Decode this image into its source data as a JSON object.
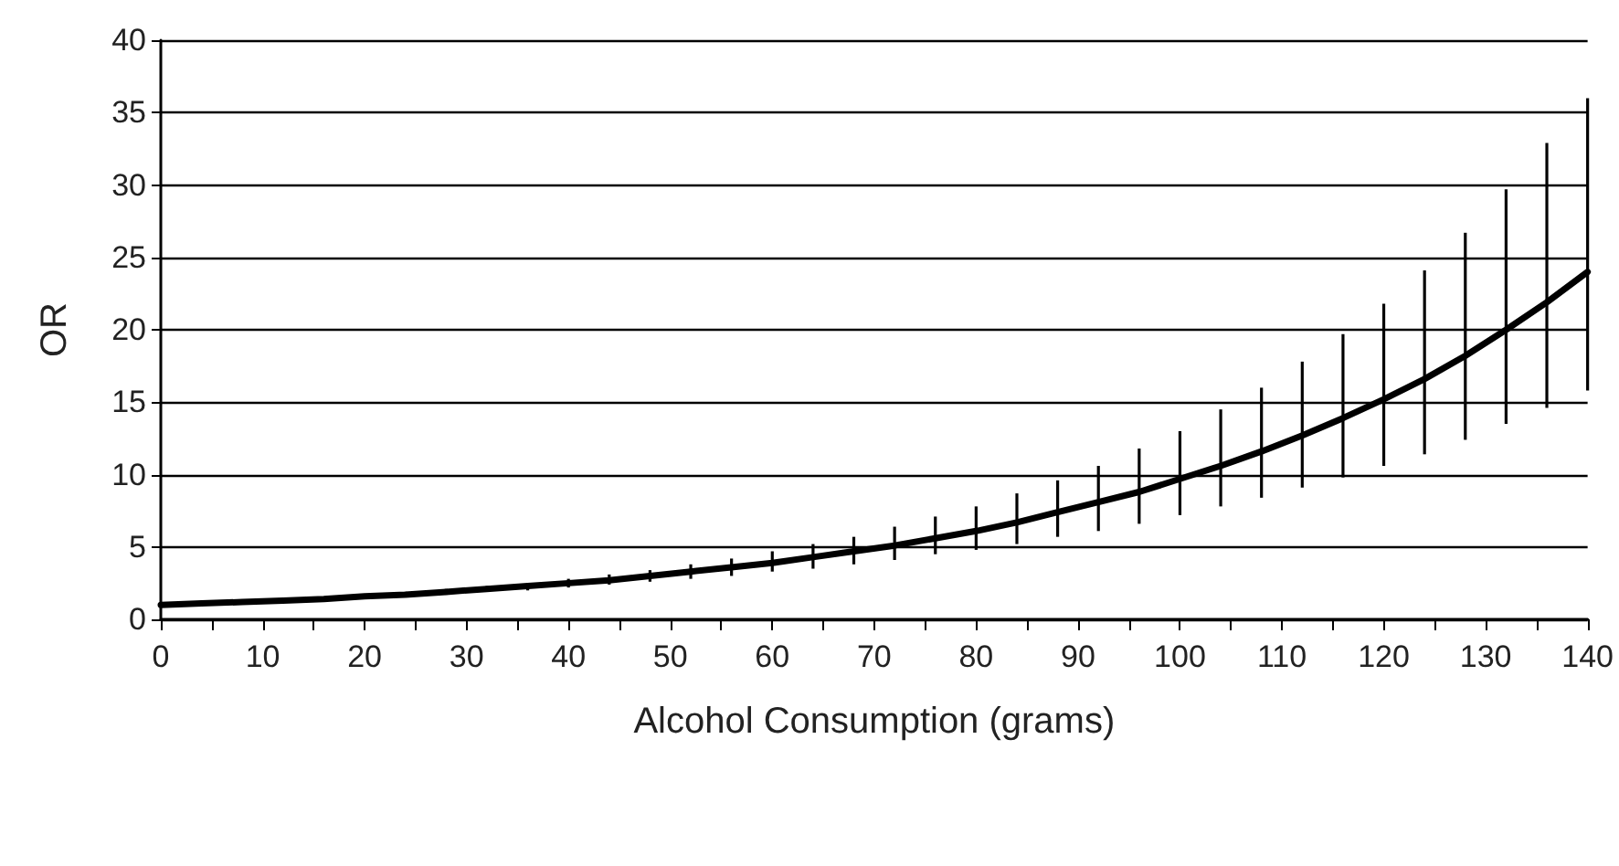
{
  "chart_data": {
    "type": "line",
    "xlabel": "Alcohol Consumption (grams)",
    "ylabel": "OR",
    "x": [
      0,
      4,
      8,
      12,
      16,
      20,
      24,
      28,
      32,
      36,
      40,
      44,
      48,
      52,
      56,
      60,
      64,
      68,
      72,
      76,
      80,
      84,
      88,
      92,
      96,
      100,
      104,
      108,
      112,
      116,
      120,
      124,
      128,
      132,
      136,
      140
    ],
    "series": [
      {
        "color": "#000000",
        "values": [
          1.0,
          1.1,
          1.2,
          1.3,
          1.4,
          1.6,
          1.7,
          1.9,
          2.1,
          2.3,
          2.5,
          2.7,
          3.0,
          3.3,
          3.6,
          3.9,
          4.3,
          4.7,
          5.1,
          5.6,
          6.1,
          6.7,
          7.4,
          8.1,
          8.8,
          9.7,
          10.6,
          11.6,
          12.7,
          13.9,
          15.2,
          16.6,
          18.2,
          20.0,
          21.9,
          24.0
        ],
        "errors": [
          null,
          [
            1.1,
            1.1
          ],
          [
            1.2,
            1.2
          ],
          [
            1.3,
            1.4
          ],
          [
            1.4,
            1.5
          ],
          [
            1.5,
            1.7
          ],
          [
            1.6,
            1.9
          ],
          [
            1.7,
            2.1
          ],
          [
            1.9,
            2.3
          ],
          [
            2.0,
            2.5
          ],
          [
            2.2,
            2.8
          ],
          [
            2.4,
            3.1
          ],
          [
            2.6,
            3.4
          ],
          [
            2.8,
            3.8
          ],
          [
            3.0,
            4.2
          ],
          [
            3.3,
            4.7
          ],
          [
            3.5,
            5.2
          ],
          [
            3.8,
            5.7
          ],
          [
            4.1,
            6.4
          ],
          [
            4.5,
            7.1
          ],
          [
            4.8,
            7.8
          ],
          [
            5.2,
            8.7
          ],
          [
            5.7,
            9.6
          ],
          [
            6.1,
            10.6
          ],
          [
            6.6,
            11.8
          ],
          [
            7.2,
            13.0
          ],
          [
            7.8,
            14.5
          ],
          [
            8.4,
            16.0
          ],
          [
            9.1,
            17.8
          ],
          [
            9.8,
            19.7
          ],
          [
            10.6,
            21.8
          ],
          [
            11.4,
            24.1
          ],
          [
            12.4,
            26.7
          ],
          [
            13.5,
            29.7
          ],
          [
            14.6,
            32.9
          ],
          [
            15.8,
            36.0
          ]
        ]
      }
    ],
    "xlim": [
      0,
      140
    ],
    "xticks": [
      0,
      {
        "value": 5,
        "label": null
      },
      10,
      {
        "value": 15,
        "label": null
      },
      20,
      {
        "value": 25,
        "label": null
      },
      30,
      {
        "value": 35,
        "label": null
      },
      40,
      {
        "value": 45,
        "label": null
      },
      50,
      {
        "value": 55,
        "label": null
      },
      60,
      {
        "value": 65,
        "label": null
      },
      70,
      {
        "value": 75,
        "label": null
      },
      80,
      {
        "value": 85,
        "label": null
      },
      90,
      {
        "value": 95,
        "label": null
      },
      100,
      {
        "value": 105,
        "label": null
      },
      110,
      {
        "value": 115,
        "label": null
      },
      120,
      {
        "value": 125,
        "label": null
      },
      130,
      {
        "value": 135,
        "label": null
      },
      140
    ],
    "ylim": [
      0,
      40
    ],
    "yticks": [
      0,
      5,
      10,
      15,
      20,
      25,
      30,
      35,
      40
    ],
    "grid": "y",
    "marker": "none",
    "line_style": "solid"
  }
}
